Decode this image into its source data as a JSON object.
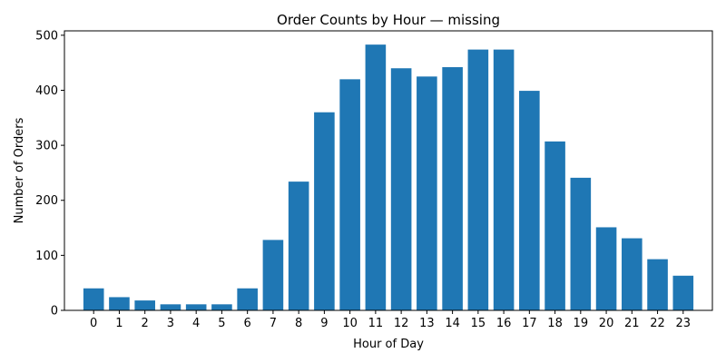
{
  "chart_data": {
    "type": "bar",
    "title": "Order Counts by Hour — missing",
    "xlabel": "Hour of Day",
    "ylabel": "Number of Orders",
    "categories": [
      "0",
      "1",
      "2",
      "3",
      "4",
      "5",
      "6",
      "7",
      "8",
      "9",
      "10",
      "11",
      "12",
      "13",
      "14",
      "15",
      "16",
      "17",
      "18",
      "19",
      "20",
      "21",
      "22",
      "23"
    ],
    "values": [
      40,
      24,
      18,
      11,
      11,
      11,
      40,
      128,
      234,
      360,
      420,
      483,
      440,
      425,
      442,
      474,
      474,
      399,
      307,
      241,
      151,
      131,
      93,
      63
    ],
    "ylim": [
      0,
      508
    ],
    "yticks": [
      0,
      100,
      200,
      300,
      400,
      500
    ],
    "grid": false,
    "bar_color": "#1f77b4"
  }
}
